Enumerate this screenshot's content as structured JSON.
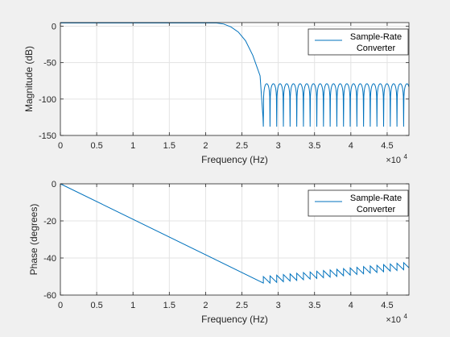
{
  "chart_data": [
    {
      "type": "line",
      "xlabel": "Frequency (Hz)",
      "ylabel": "Magnitude (dB)",
      "xlim": [
        0,
        48000
      ],
      "ylim": [
        -150,
        5
      ],
      "x_ticks": [
        0,
        5000,
        10000,
        15000,
        20000,
        25000,
        30000,
        35000,
        40000,
        45000
      ],
      "x_tick_labels": [
        "0",
        "0.5",
        "1",
        "1.5",
        "2",
        "2.5",
        "3",
        "3.5",
        "4",
        "4.5"
      ],
      "y_ticks": [
        0,
        -50,
        -100,
        -150
      ],
      "y_tick_labels": [
        "0",
        "-50",
        "-100",
        "-150"
      ],
      "exponent_base": "×10",
      "exponent_power": "4",
      "grid": true,
      "legend_placement": "top-right",
      "legend_lines": [
        "Sample-Rate",
        "Converter"
      ],
      "color": "#0072bd",
      "series": [
        {
          "name": "Sample-Rate Converter",
          "passband_db": 4.5,
          "cutoff_start_hz": 21500,
          "stopband_start_hz": 27900,
          "stopband_first_null_hz": 27950,
          "null_spacing_hz": 920,
          "sidelobe_peak_db": -79,
          "null_depth_db": -138,
          "x": [
            0,
            21500,
            22500,
            23500,
            24500,
            25500,
            26500,
            27500,
            27900
          ],
          "y": [
            4.5,
            4.5,
            3,
            -1,
            -8,
            -20,
            -40,
            -68,
            -125
          ]
        }
      ]
    },
    {
      "type": "line",
      "xlabel": "Frequency (Hz)",
      "ylabel": "Phase (degrees)",
      "xlim": [
        0,
        48000
      ],
      "ylim": [
        -60,
        0
      ],
      "x_ticks": [
        0,
        5000,
        10000,
        15000,
        20000,
        25000,
        30000,
        35000,
        40000,
        45000
      ],
      "x_tick_labels": [
        "0",
        "0.5",
        "1",
        "1.5",
        "2",
        "2.5",
        "3",
        "3.5",
        "4",
        "4.5"
      ],
      "y_ticks": [
        0,
        -20,
        -40,
        -60
      ],
      "y_tick_labels": [
        "0",
        "-20",
        "-40",
        "-60"
      ],
      "exponent_base": "×10",
      "exponent_power": "4",
      "grid": true,
      "legend_placement": "top-right",
      "legend_lines": [
        "Sample-Rate",
        "Converter"
      ],
      "color": "#0072bd",
      "series": [
        {
          "name": "Sample-Rate Converter",
          "x": [
            0,
            27950
          ],
          "y": [
            0,
            -53.5
          ],
          "sawtooth_start_hz": 27950,
          "sawtooth_period_hz": 920,
          "sawtooth_jump_deg": 3.5,
          "sawtooth_low_start": -53.5,
          "sawtooth_low_end": -46.0
        }
      ]
    }
  ]
}
